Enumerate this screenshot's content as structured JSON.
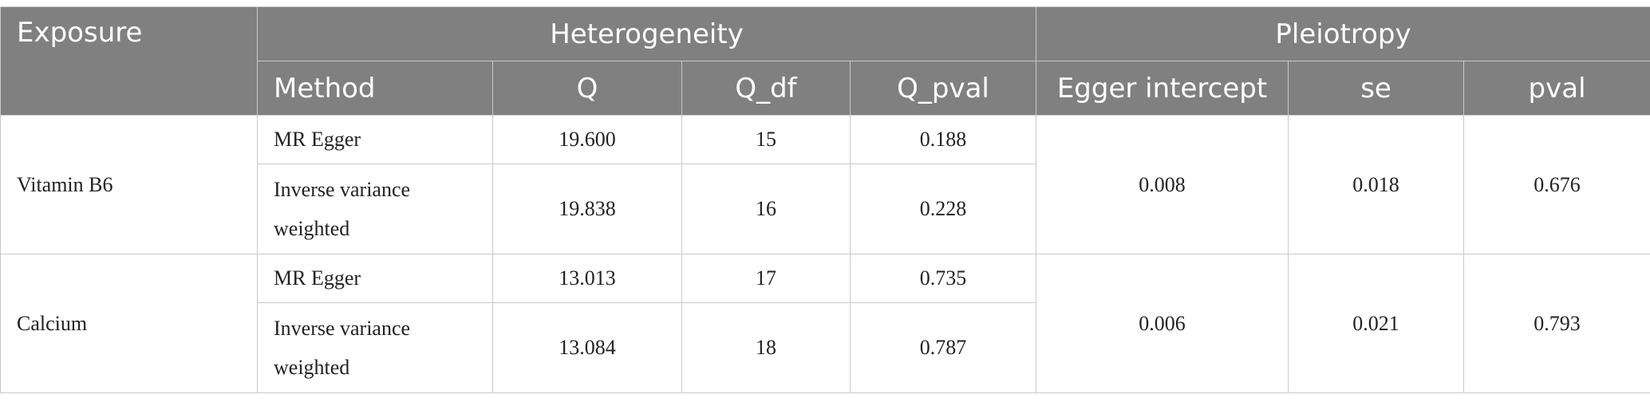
{
  "headers": {
    "exposure": "Exposure",
    "heterogeneity": "Heterogeneity",
    "pleiotropy": "Pleiotropy",
    "method": "Method",
    "q": "Q",
    "q_df": "Q_df",
    "q_pval": "Q_pval",
    "egger_intercept": "Egger intercept",
    "se": "se",
    "pval": "pval"
  },
  "groups": [
    {
      "exposure": "Vitamin B6",
      "egger_intercept": "0.008",
      "se": "0.018",
      "pval": "0.676",
      "rows": [
        {
          "method": "MR Egger",
          "q": "19.600",
          "q_df": "15",
          "q_pval": "0.188"
        },
        {
          "method": "Inverse variance weighted",
          "q": "19.838",
          "q_df": "16",
          "q_pval": "0.228"
        }
      ]
    },
    {
      "exposure": "Calcium",
      "egger_intercept": "0.006",
      "se": "0.021",
      "pval": "0.793",
      "rows": [
        {
          "method": "MR Egger",
          "q": "13.013",
          "q_df": "17",
          "q_pval": "0.735"
        },
        {
          "method": "Inverse variance weighted",
          "q": "13.084",
          "q_df": "18",
          "q_pval": "0.787"
        }
      ]
    }
  ]
}
